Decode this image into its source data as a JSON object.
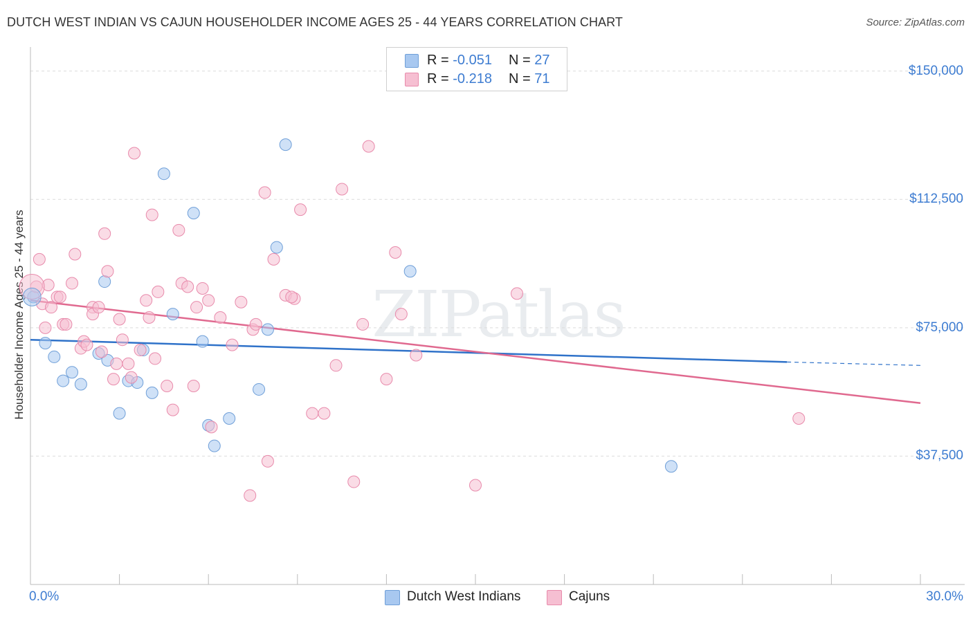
{
  "chart_data": {
    "type": "scatter",
    "title": "DUTCH WEST INDIAN VS CAJUN HOUSEHOLDER INCOME AGES 25 - 44 YEARS CORRELATION CHART",
    "source": "Source: ZipAtlas.com",
    "ylabel": "Householder Income Ages 25 - 44 years",
    "xlabel": "",
    "xlim": [
      0,
      30
    ],
    "ylim": [
      0,
      155000
    ],
    "yticks": [
      37500,
      75000,
      112500,
      150000
    ],
    "ytick_labels": [
      "$37,500",
      "$75,000",
      "$112,500",
      "$150,000"
    ],
    "xtick_labels": [
      "0.0%",
      "30.0%"
    ],
    "watermark": "ZIPatlas",
    "legend": {
      "rows": [
        {
          "r_label": "R = ",
          "r_value": "-0.051",
          "n_label": "N = ",
          "n_value": "27"
        },
        {
          "r_label": "R = ",
          "r_value": "-0.218",
          "n_label": "N = ",
          "n_value": "71"
        }
      ]
    },
    "series": [
      {
        "name": "Dutch West Indians",
        "color": "#a8c8f0",
        "stroke": "#6f9fd8",
        "line_color": "#2f72c9",
        "trend": {
          "x0": 0,
          "y0": 71500,
          "x1": 25.5,
          "y1": 65000,
          "dash_to_x": 30,
          "dash_to_y": 64000
        },
        "points": [
          [
            0.1,
            84000
          ],
          [
            0.5,
            70500
          ],
          [
            0.8,
            66500
          ],
          [
            1.1,
            59500
          ],
          [
            1.4,
            62000
          ],
          [
            1.7,
            58500
          ],
          [
            2.3,
            67500
          ],
          [
            2.5,
            88500
          ],
          [
            2.6,
            65500
          ],
          [
            3.0,
            50000
          ],
          [
            3.3,
            59500
          ],
          [
            3.6,
            59000
          ],
          [
            3.8,
            68500
          ],
          [
            4.1,
            56000
          ],
          [
            4.5,
            120000
          ],
          [
            4.8,
            79000
          ],
          [
            5.5,
            108500
          ],
          [
            5.8,
            71000
          ],
          [
            6.0,
            46500
          ],
          [
            6.2,
            40500
          ],
          [
            6.7,
            48500
          ],
          [
            7.7,
            57000
          ],
          [
            8.0,
            74500
          ],
          [
            8.3,
            98500
          ],
          [
            8.6,
            128500
          ],
          [
            12.8,
            91500
          ],
          [
            21.6,
            34500
          ]
        ]
      },
      {
        "name": "Cajuns",
        "color": "#f6bfd2",
        "stroke": "#e88aab",
        "line_color": "#e0698f",
        "trend": {
          "x0": 0,
          "y0": 83000,
          "x1": 30,
          "y1": 53000
        },
        "points": [
          [
            0.2,
            87000
          ],
          [
            0.3,
            95000
          ],
          [
            0.4,
            82000
          ],
          [
            0.5,
            75000
          ],
          [
            0.6,
            87500
          ],
          [
            0.7,
            81000
          ],
          [
            0.9,
            84000
          ],
          [
            1.0,
            84000
          ],
          [
            1.1,
            76000
          ],
          [
            1.2,
            76000
          ],
          [
            1.4,
            88000
          ],
          [
            1.5,
            96500
          ],
          [
            1.7,
            69000
          ],
          [
            1.8,
            71000
          ],
          [
            1.9,
            70000
          ],
          [
            2.1,
            81000
          ],
          [
            2.1,
            79000
          ],
          [
            2.3,
            81000
          ],
          [
            2.4,
            68000
          ],
          [
            2.5,
            102500
          ],
          [
            2.6,
            91500
          ],
          [
            2.8,
            60000
          ],
          [
            2.9,
            64500
          ],
          [
            3.0,
            77500
          ],
          [
            3.1,
            71500
          ],
          [
            3.3,
            64500
          ],
          [
            3.4,
            60500
          ],
          [
            3.5,
            126000
          ],
          [
            3.7,
            68500
          ],
          [
            3.9,
            83000
          ],
          [
            4.0,
            78000
          ],
          [
            4.1,
            108000
          ],
          [
            4.2,
            66000
          ],
          [
            4.3,
            85500
          ],
          [
            4.6,
            58000
          ],
          [
            4.8,
            51000
          ],
          [
            5.0,
            103500
          ],
          [
            5.1,
            88000
          ],
          [
            5.3,
            87000
          ],
          [
            5.5,
            58000
          ],
          [
            5.6,
            81000
          ],
          [
            5.8,
            86500
          ],
          [
            6.0,
            83000
          ],
          [
            6.1,
            46000
          ],
          [
            6.4,
            78000
          ],
          [
            6.8,
            70000
          ],
          [
            7.1,
            82500
          ],
          [
            7.4,
            26000
          ],
          [
            7.5,
            74500
          ],
          [
            7.6,
            76000
          ],
          [
            7.9,
            114500
          ],
          [
            8.0,
            36000
          ],
          [
            8.2,
            95000
          ],
          [
            8.6,
            84500
          ],
          [
            8.9,
            83500
          ],
          [
            8.8,
            84000
          ],
          [
            9.1,
            109500
          ],
          [
            9.5,
            50000
          ],
          [
            9.9,
            50000
          ],
          [
            10.3,
            64000
          ],
          [
            10.5,
            115500
          ],
          [
            10.9,
            30000
          ],
          [
            11.2,
            76000
          ],
          [
            11.4,
            128000
          ],
          [
            12.0,
            60000
          ],
          [
            12.3,
            97000
          ],
          [
            12.5,
            79000
          ],
          [
            13.0,
            67000
          ],
          [
            15.0,
            29000
          ],
          [
            16.4,
            85000
          ],
          [
            25.9,
            48500
          ]
        ]
      }
    ]
  }
}
